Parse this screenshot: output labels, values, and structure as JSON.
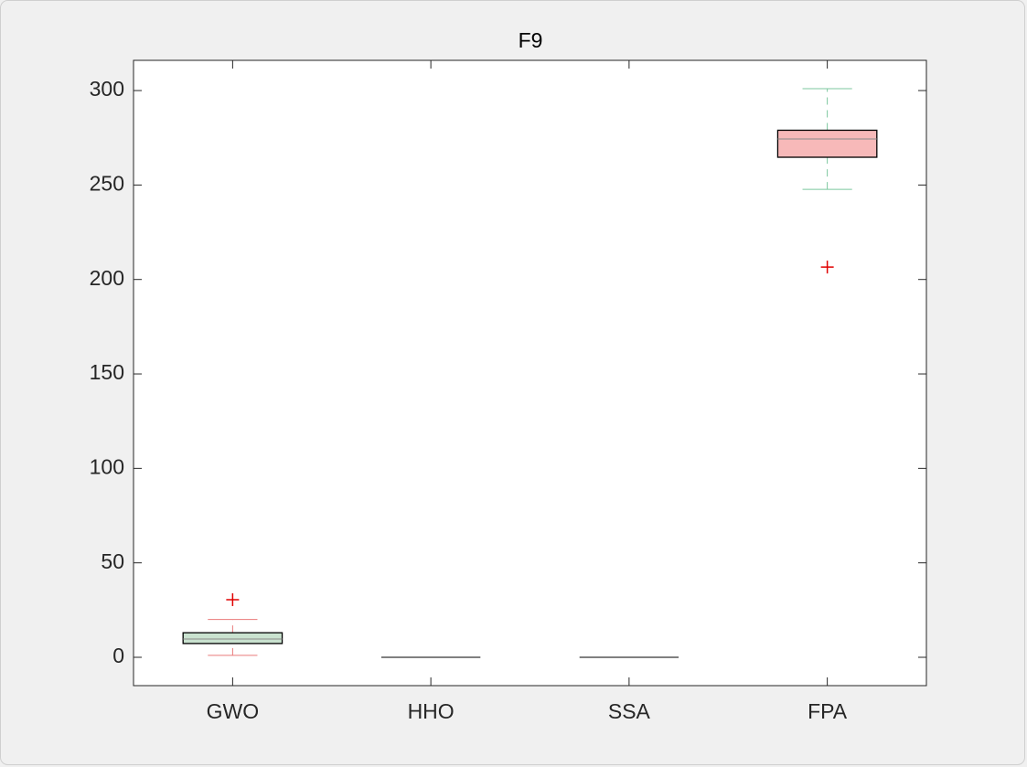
{
  "chart_data": {
    "type": "box",
    "title": "F9",
    "categories": [
      "GWO",
      "HHO",
      "SSA",
      "FPA"
    ],
    "boxes": [
      {
        "min": 1,
        "q1": 7.3,
        "median": 9.7,
        "q3": 13,
        "max": 20,
        "outliers": [
          30.5
        ]
      },
      {
        "min": 0,
        "q1": 0,
        "median": 0,
        "q3": 0,
        "max": 0,
        "outliers": []
      },
      {
        "min": 0,
        "q1": 0,
        "median": 0,
        "q3": 0,
        "max": 0,
        "outliers": []
      },
      {
        "min": 247.7,
        "q1": 264.7,
        "median": 274.4,
        "q3": 279,
        "max": 301,
        "outliers": [
          206.6
        ]
      }
    ],
    "box_colors": [
      "#c9e2cf",
      "#ffffff",
      "#ffffff",
      "#f7b9b9"
    ],
    "whisker_colors": [
      "#e97a7a",
      "#000000",
      "#000000",
      "#7cc79f"
    ],
    "outlier_color": "#e00000",
    "ylim": [
      -15,
      316
    ],
    "yticks": [
      0,
      50,
      100,
      150,
      200,
      250,
      300
    ]
  }
}
